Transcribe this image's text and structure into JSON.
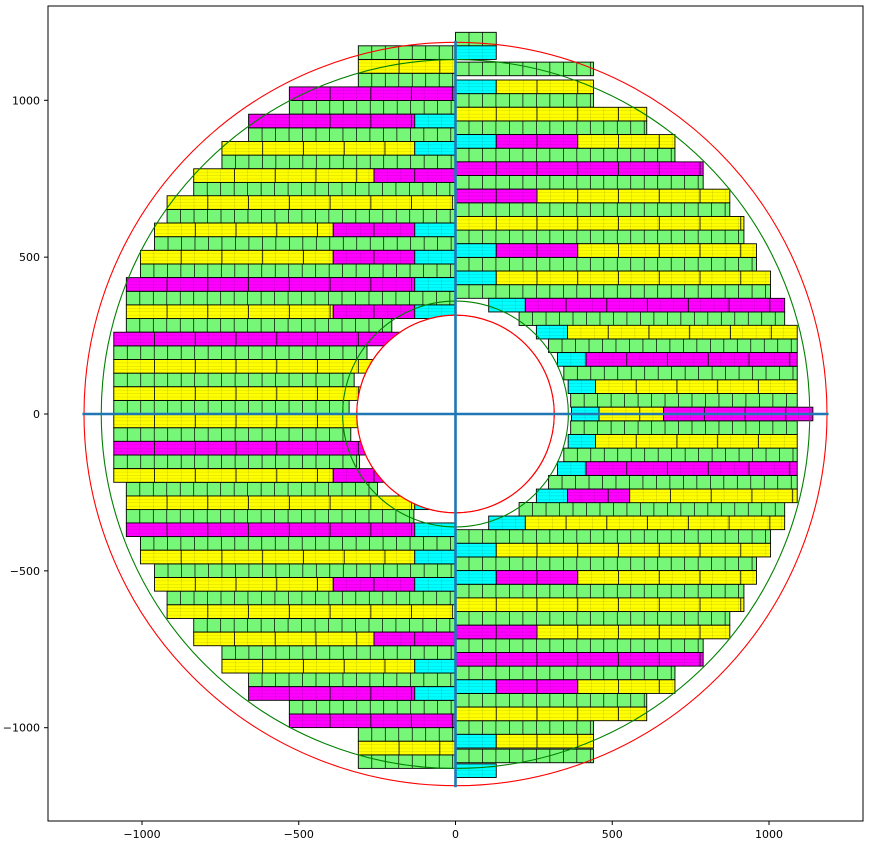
{
  "chart_data": {
    "type": "scatter",
    "title": "",
    "xlabel": "",
    "ylabel": "",
    "xlim": [
      -1300,
      1300
    ],
    "ylim": [
      -1300,
      1300
    ],
    "x_ticks": [
      -1000,
      -500,
      0,
      500,
      1000
    ],
    "x_tick_labels": [
      "−1000",
      "−500",
      "0",
      "500",
      "1000"
    ],
    "y_ticks": [
      -1000,
      -500,
      0,
      500,
      1000
    ],
    "y_tick_labels": [
      "−1000",
      "−500",
      "0",
      "500",
      "1000"
    ],
    "grid": false,
    "circles": [
      {
        "name": "outer-boundary",
        "radius": 1185,
        "color": "#ff0000"
      },
      {
        "name": "outer-envelope",
        "radius": 1130,
        "color": "#008000"
      },
      {
        "name": "inner-envelope",
        "radius": 360,
        "color": "#008000"
      },
      {
        "name": "inner-boundary",
        "radius": 315,
        "color": "#ff0000"
      }
    ],
    "axis_lines": {
      "color": "#1f77b4",
      "x_extent": [
        -1190,
        1190
      ],
      "y_extent": [
        -1190,
        1190
      ]
    },
    "module_colors": {
      "green": "#77f777",
      "cyan": "#00ffff",
      "magenta": "#ff00ff",
      "yellow": "#ffff00"
    },
    "row_height": 43.4,
    "left_rows": [
      {
        "y": 1108,
        "xmin": -310,
        "segs": [
          "Y"
        ]
      },
      {
        "y": 1021,
        "xmin": -530,
        "segs": [
          "M"
        ]
      },
      {
        "y": 934,
        "xmin": -660,
        "segs": [
          "M",
          "C"
        ]
      },
      {
        "y": 847,
        "xmin": -745,
        "segs": [
          "Y",
          "C"
        ]
      },
      {
        "y": 760,
        "xmin": -835,
        "segs": [
          "Y",
          "M"
        ]
      },
      {
        "y": 674,
        "xmin": -920,
        "segs": [
          "Y"
        ]
      },
      {
        "y": 587,
        "xmin": -960,
        "segs": [
          "Y",
          "M",
          "C"
        ]
      },
      {
        "y": 500,
        "xmin": -1005,
        "segs": [
          "Y",
          "M",
          "C"
        ]
      },
      {
        "y": 413,
        "xmin": -1050,
        "segs": [
          "M",
          "C"
        ]
      },
      {
        "y": 326,
        "xmin": -1050,
        "segs": [
          "Y",
          "M",
          "C"
        ]
      },
      {
        "y": 239,
        "xmin": -1090,
        "segs": [
          "M",
          "C"
        ]
      },
      {
        "y": 152,
        "xmin": -1090,
        "segs": [
          "Y",
          "C"
        ]
      },
      {
        "y": 65,
        "xmin": -1090,
        "segs": [
          "Y",
          "C"
        ]
      },
      {
        "y": -22,
        "xmin": -1090,
        "segs": [
          "Y",
          "C"
        ]
      },
      {
        "y": -109,
        "xmin": -1090,
        "segs": [
          "M",
          "C"
        ]
      },
      {
        "y": -196,
        "xmin": -1090,
        "segs": [
          "Y",
          "M",
          "C"
        ]
      },
      {
        "y": -283,
        "xmin": -1050,
        "segs": [
          "Y",
          "C"
        ]
      },
      {
        "y": -369,
        "xmin": -1050,
        "segs": [
          "M",
          "C"
        ]
      },
      {
        "y": -456,
        "xmin": -1005,
        "segs": [
          "Y",
          "C"
        ]
      },
      {
        "y": -543,
        "xmin": -960,
        "segs": [
          "Y",
          "M",
          "C"
        ]
      },
      {
        "y": -630,
        "xmin": -920,
        "segs": [
          "Y"
        ]
      },
      {
        "y": -717,
        "xmin": -835,
        "segs": [
          "Y",
          "M"
        ]
      },
      {
        "y": -804,
        "xmin": -745,
        "segs": [
          "Y",
          "C"
        ]
      },
      {
        "y": -891,
        "xmin": -660,
        "segs": [
          "M",
          "C"
        ]
      },
      {
        "y": -978,
        "xmin": -530,
        "segs": [
          "M"
        ]
      },
      {
        "y": -1065,
        "xmin": -310,
        "segs": [
          "Y"
        ]
      }
    ],
    "right_rows": [
      {
        "y": 1043,
        "xmax": 440,
        "segs": [
          "C",
          "Y"
        ]
      },
      {
        "y": 956,
        "xmax": 610,
        "segs": [
          "Y"
        ]
      },
      {
        "y": 869,
        "xmax": 700,
        "segs": [
          "C",
          "M",
          "Y"
        ]
      },
      {
        "y": 782,
        "xmax": 790,
        "segs": [
          "M"
        ]
      },
      {
        "y": 695,
        "xmax": 875,
        "segs": [
          "M",
          "Y"
        ]
      },
      {
        "y": 608,
        "xmax": 920,
        "segs": [
          "Y"
        ]
      },
      {
        "y": 521,
        "xmax": 960,
        "segs": [
          "C",
          "M",
          "Y"
        ]
      },
      {
        "y": 434,
        "xmax": 1005,
        "segs": [
          "C",
          "Y"
        ]
      },
      {
        "y": 347,
        "xmax": 1050,
        "segs": [
          "C",
          "M"
        ]
      },
      {
        "y": 261,
        "xmax": 1090,
        "segs": [
          "C",
          "Y"
        ]
      },
      {
        "y": 174,
        "xmax": 1090,
        "segs": [
          "C",
          "M"
        ]
      },
      {
        "y": 87,
        "xmax": 1090,
        "segs": [
          "C",
          "Y"
        ]
      },
      {
        "y": 0,
        "xmax": 1140,
        "segs": [
          "C",
          "Y",
          "M"
        ]
      },
      {
        "y": -87,
        "xmax": 1090,
        "segs": [
          "C",
          "Y"
        ]
      },
      {
        "y": -174,
        "xmax": 1090,
        "segs": [
          "C",
          "M"
        ]
      },
      {
        "y": -261,
        "xmax": 1090,
        "segs": [
          "C",
          "M",
          "Y"
        ]
      },
      {
        "y": -347,
        "xmax": 1050,
        "segs": [
          "C",
          "Y"
        ]
      },
      {
        "y": -434,
        "xmax": 1005,
        "segs": [
          "C",
          "Y"
        ]
      },
      {
        "y": -521,
        "xmax": 960,
        "segs": [
          "C",
          "M",
          "Y"
        ]
      },
      {
        "y": -608,
        "xmax": 920,
        "segs": [
          "Y"
        ]
      },
      {
        "y": -695,
        "xmax": 875,
        "segs": [
          "M",
          "Y"
        ]
      },
      {
        "y": -782,
        "xmax": 790,
        "segs": [
          "M"
        ]
      },
      {
        "y": -869,
        "xmax": 700,
        "segs": [
          "C",
          "M",
          "Y"
        ]
      },
      {
        "y": -956,
        "xmax": 610,
        "segs": [
          "Y"
        ]
      },
      {
        "y": -1043,
        "xmax": 440,
        "segs": [
          "C",
          "Y"
        ]
      }
    ],
    "right_extra_rows": [
      {
        "y": 1152,
        "xmax": 130,
        "segs": [
          "C"
        ]
      },
      {
        "y": -1137,
        "xmax": 130,
        "segs": [
          "C"
        ]
      }
    ]
  }
}
